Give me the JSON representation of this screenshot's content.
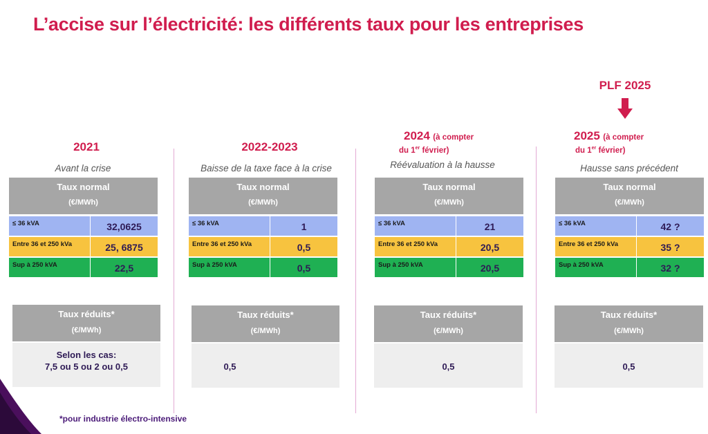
{
  "title": "L’accise sur l’électricité: les différents taux pour les entreprises",
  "plf": "PLF 2025",
  "footnote": "*pour industrie électro-intensive",
  "table_header": {
    "line1": "Taux normal",
    "line2": "(€/MWh)"
  },
  "reduced_header": {
    "line1": "Taux réduits*",
    "line2": "(€/MWh)"
  },
  "row_labels": [
    "≤ 36 kVA",
    "Entre 36 et 250 kVa",
    "Sup à 250  kVA"
  ],
  "columns": [
    {
      "year": "2021",
      "subtitle": "Avant la crise",
      "values": [
        "32,0625",
        "25, 6875",
        "22,5"
      ],
      "reduced_line1": "Selon les cas:",
      "reduced_line2": "7,5 ou 5 ou 2 ou 0,5"
    },
    {
      "year": "2022-2023",
      "subtitle": "Baisse de la taxe face à la crise",
      "values": [
        "1",
        "0,5",
        "0,5"
      ],
      "reduced": "0,5"
    },
    {
      "year": "2024",
      "year_note_a": "(à compter",
      "year_note_b": "du 1",
      "year_note_sup": "er",
      "year_note_c": " février)",
      "subtitle": "Réévaluation à la hausse",
      "values": [
        "21",
        "20,5",
        "20,5"
      ],
      "reduced": "0,5"
    },
    {
      "year": "2025",
      "year_note_a": "(à compter",
      "year_note_b": "du 1",
      "year_note_sup": "er",
      "year_note_c": " février)",
      "subtitle": "Hausse sans précédent",
      "values": [
        "42 ?",
        "35 ?",
        "32 ?"
      ],
      "reduced": "0,5"
    }
  ],
  "colors": {
    "accent": "#d01d4e",
    "header_gray": "#a6a6a6",
    "row_blue": "#9fb4f2",
    "row_yellow": "#f7c33f",
    "row_green": "#1fb053",
    "value_text": "#2e1a55"
  }
}
